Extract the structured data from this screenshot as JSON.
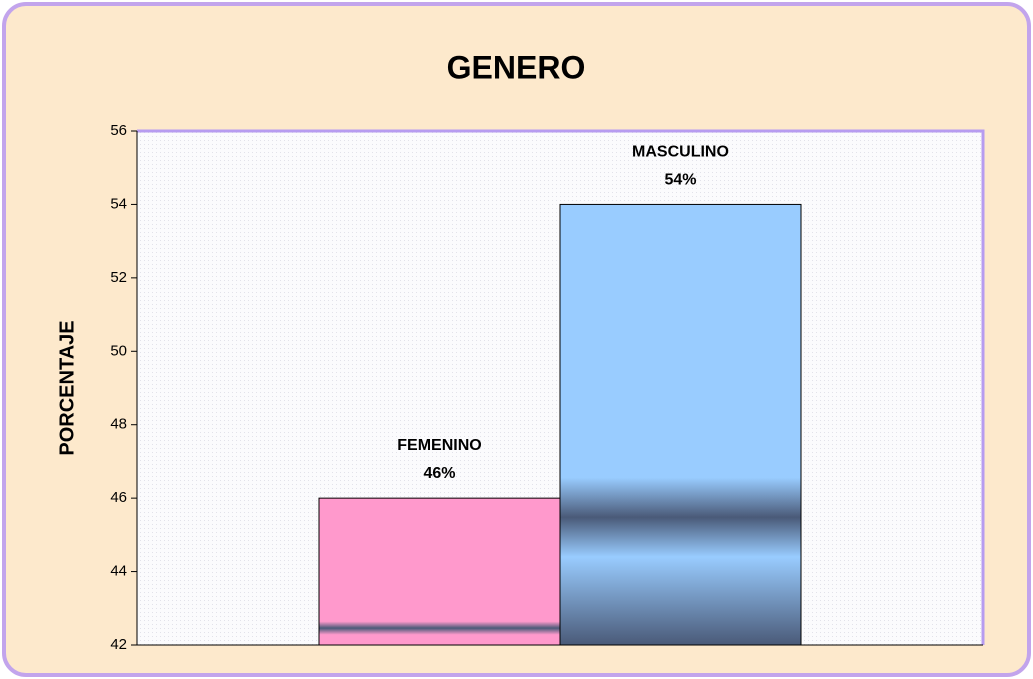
{
  "chart_data": {
    "type": "bar",
    "title": "GENERO",
    "y_label": "PORCENTAJE",
    "categories": [
      "FEMENINO",
      "MASCULINO"
    ],
    "values": [
      46,
      54
    ],
    "value_labels": [
      "46%",
      "54%"
    ],
    "colors": [
      "#ff99cc",
      "#99ccff"
    ],
    "ylim": [
      42,
      56
    ],
    "yticks": [
      42,
      44,
      46,
      48,
      50,
      52,
      54,
      56
    ],
    "grid": false
  }
}
